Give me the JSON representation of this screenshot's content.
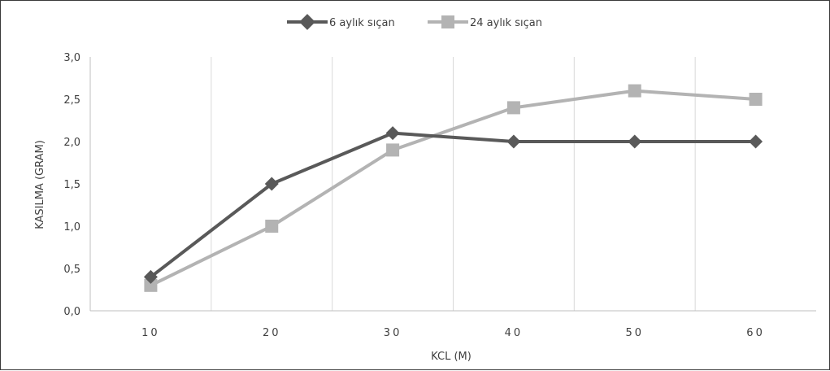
{
  "chart_data": {
    "type": "line",
    "title": "",
    "xlabel": "KCL (M)",
    "ylabel": "KASILMA (GRAM)",
    "categories": [
      "10",
      "20",
      "30",
      "40",
      "50",
      "60"
    ],
    "ylim": [
      0,
      3
    ],
    "y_ticks": [
      "0,0",
      "0,5",
      "1,0",
      "1,5",
      "2,0",
      "2,5",
      "3,0"
    ],
    "grid": "vertical",
    "legend_position": "top",
    "series": [
      {
        "name": "6 aylık sıçan",
        "values": [
          0.4,
          1.5,
          2.1,
          2.0,
          2.0,
          2.0
        ],
        "color": "#595959",
        "marker": "diamond"
      },
      {
        "name": "24 aylık sıçan",
        "values": [
          0.3,
          1.0,
          1.9,
          2.4,
          2.6,
          2.5
        ],
        "color": "#b3b3b3",
        "marker": "square"
      }
    ]
  }
}
